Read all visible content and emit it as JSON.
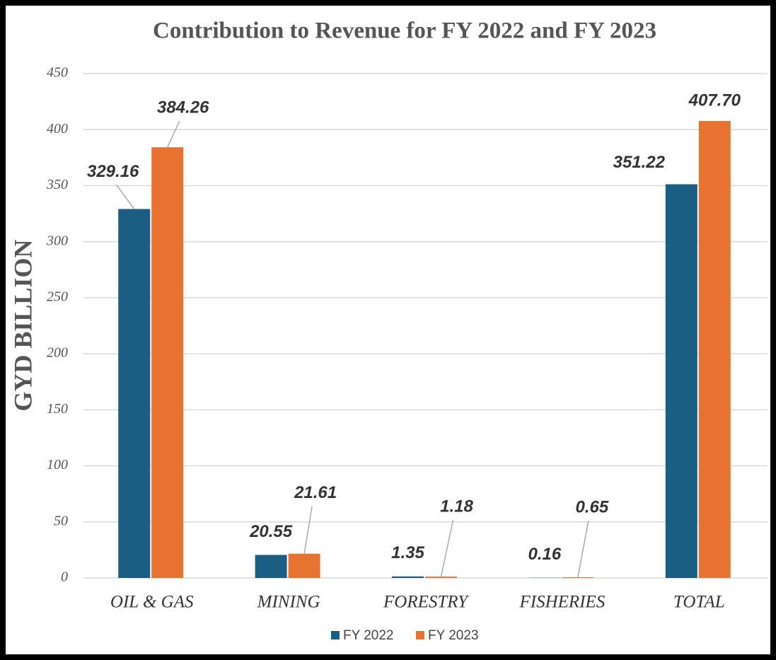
{
  "chart_data": {
    "type": "bar",
    "title": "Contribution to Revenue for FY 2022 and FY 2023",
    "y_axis_label": "GYD BILLION",
    "categories": [
      "OIL & GAS",
      "MINING",
      "FORESTRY",
      "FISHERIES",
      "TOTAL"
    ],
    "series": [
      {
        "name": "FY 2022",
        "color": "#1b5e83",
        "values": [
          329.16,
          20.55,
          1.35,
          0.16,
          351.22
        ],
        "value_labels": [
          "329.16",
          "20.55",
          "1.35",
          "0.16",
          "351.22"
        ]
      },
      {
        "name": "FY 2023",
        "color": "#e8722f",
        "values": [
          384.26,
          21.61,
          1.18,
          0.65,
          407.7
        ],
        "value_labels": [
          "384.26",
          "21.61",
          "1.18",
          "0.65",
          "407.70"
        ]
      }
    ],
    "ylim": [
      0,
      450
    ],
    "yticks": [
      0,
      50,
      100,
      150,
      200,
      250,
      300,
      350,
      400,
      450
    ],
    "grid": true,
    "legend": "bottom"
  }
}
